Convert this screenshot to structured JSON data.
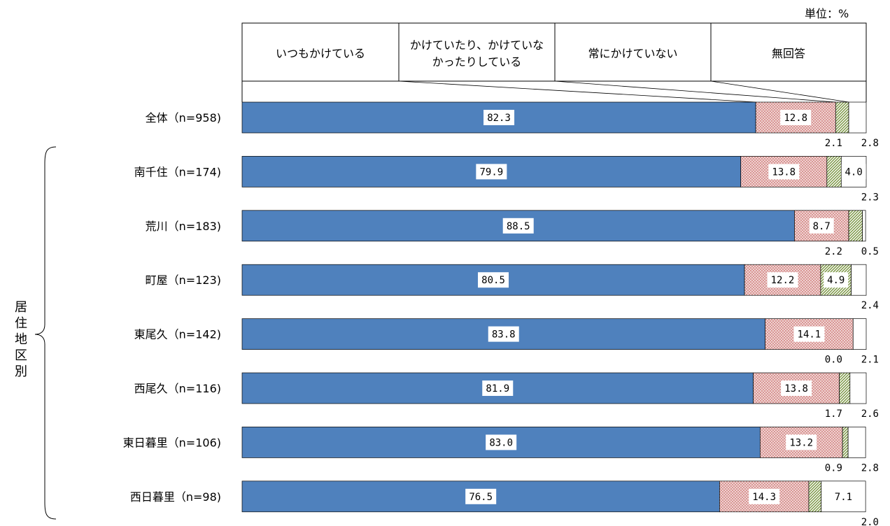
{
  "unit_label": "単位：%",
  "group_label": [
    "居",
    "住",
    "地",
    "区",
    "別"
  ],
  "chart_data": {
    "type": "bar",
    "orientation": "horizontal",
    "stacked": true,
    "unit": "%",
    "xlim": [
      0,
      100
    ],
    "legend_position": "top",
    "categories": [
      "全体（n=958)",
      "南千住（n=174)",
      "荒川（n=183)",
      "町屋（n=123)",
      "東尾久（n=142)",
      "西尾久（n=116)",
      "東日暮里（n=106)",
      "西日暮里（n=98)"
    ],
    "category_group": "居住地区別",
    "series": [
      {
        "name": "いつもかけている",
        "values": [
          82.3,
          79.9,
          88.5,
          80.5,
          83.8,
          81.9,
          83.0,
          76.5
        ],
        "color": "#4f81bd",
        "pattern": "solid"
      },
      {
        "name": "かけていたり、かけていなかったりしている",
        "values": [
          12.8,
          13.8,
          8.7,
          12.2,
          14.1,
          13.8,
          13.2,
          14.3
        ],
        "color": "#d99694",
        "pattern": "dots"
      },
      {
        "name": "常にかけていない",
        "values": [
          2.1,
          2.3,
          2.2,
          4.9,
          0.0,
          1.7,
          0.9,
          2.0
        ],
        "color": "#9bbb59",
        "pattern": "diagonal"
      },
      {
        "name": "無回答",
        "values": [
          2.8,
          4.0,
          0.5,
          2.4,
          2.1,
          2.6,
          2.8,
          7.1
        ],
        "color": "#ffffff",
        "pattern": "none"
      }
    ],
    "value_labels": [
      {
        "inside": [
          "82.3",
          "12.8",
          null,
          null
        ],
        "below": [
          "2.1",
          "2.8"
        ]
      },
      {
        "inside": [
          "79.9",
          "13.8",
          null,
          "4.0"
        ],
        "below": [
          "2.3"
        ]
      },
      {
        "inside": [
          "88.5",
          "8.7",
          null,
          null
        ],
        "below": [
          "2.2",
          "0.5"
        ]
      },
      {
        "inside": [
          "80.5",
          "12.2",
          "4.9",
          null
        ],
        "below": [
          "2.4"
        ]
      },
      {
        "inside": [
          "83.8",
          "14.1",
          null,
          null
        ],
        "below": [
          "0.0",
          "2.1"
        ]
      },
      {
        "inside": [
          "81.9",
          "13.8",
          null,
          null
        ],
        "below": [
          "1.7",
          "2.6"
        ]
      },
      {
        "inside": [
          "83.0",
          "13.2",
          null,
          null
        ],
        "below": [
          "0.9",
          "2.8"
        ]
      },
      {
        "inside": [
          "76.5",
          "14.3",
          null,
          "7.1"
        ],
        "below": [
          "2.0"
        ]
      }
    ]
  }
}
